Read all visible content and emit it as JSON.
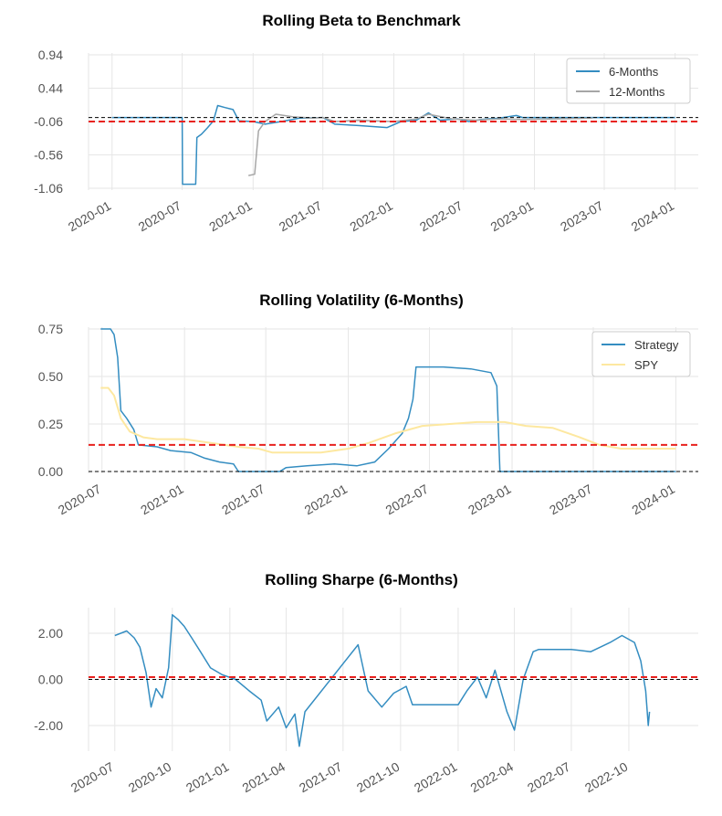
{
  "chart_data": [
    {
      "type": "line",
      "title": "Rolling Beta to Benchmark",
      "xlabel": "",
      "ylabel": "",
      "xlim": [
        "2019-11-01",
        "2024-03-01"
      ],
      "ylim": [
        -1.06,
        0.94
      ],
      "yticks": [
        "0.94",
        "0.44",
        "-0.06",
        "-0.56",
        "-1.06"
      ],
      "xticks": [
        "2020-01",
        "2020-07",
        "2021-01",
        "2021-07",
        "2022-01",
        "2022-07",
        "2023-01",
        "2023-07",
        "2024-01"
      ],
      "grid": true,
      "legend": "top-right",
      "reference_lines": [
        {
          "y": 0.0,
          "style": "dashed",
          "color": "#000000"
        },
        {
          "y": -0.06,
          "style": "dashed",
          "color": "#e8221f"
        }
      ],
      "series": [
        {
          "name": "6-Months",
          "color": "#348dc1",
          "points": [
            [
              "2020-01-01",
              0.0
            ],
            [
              "2020-04-01",
              0.0
            ],
            [
              "2020-07-01",
              0.0
            ],
            [
              "2020-07-02",
              -1.0
            ],
            [
              "2020-08-05",
              -1.0
            ],
            [
              "2020-08-08",
              -0.3
            ],
            [
              "2020-08-20",
              -0.25
            ],
            [
              "2020-09-05",
              -0.15
            ],
            [
              "2020-09-20",
              -0.05
            ],
            [
              "2020-10-01",
              0.18
            ],
            [
              "2020-10-20",
              0.15
            ],
            [
              "2020-11-10",
              0.12
            ],
            [
              "2020-11-25",
              -0.05
            ],
            [
              "2021-01-01",
              -0.06
            ],
            [
              "2021-02-01",
              -0.1
            ],
            [
              "2021-03-15",
              -0.06
            ],
            [
              "2021-05-01",
              -0.01
            ],
            [
              "2021-07-01",
              0.0
            ],
            [
              "2021-08-01",
              -0.1
            ],
            [
              "2021-10-01",
              -0.12
            ],
            [
              "2021-12-15",
              -0.15
            ],
            [
              "2022-01-20",
              -0.06
            ],
            [
              "2022-03-01",
              -0.04
            ],
            [
              "2022-04-01",
              0.07
            ],
            [
              "2022-05-01",
              -0.04
            ],
            [
              "2022-06-15",
              -0.02
            ],
            [
              "2022-07-15",
              -0.06
            ],
            [
              "2022-08-15",
              -0.03
            ],
            [
              "2022-10-01",
              -0.01
            ],
            [
              "2022-11-15",
              0.03
            ],
            [
              "2022-12-01",
              0.0
            ],
            [
              "2023-05-01",
              0.0
            ],
            [
              "2024-01-01",
              0.0
            ]
          ]
        },
        {
          "name": "12-Months",
          "color": "#a6a6a6",
          "points": [
            [
              "2020-12-20",
              -0.87
            ],
            [
              "2021-01-05",
              -0.85
            ],
            [
              "2021-01-15",
              -0.2
            ],
            [
              "2021-02-01",
              -0.06
            ],
            [
              "2021-03-01",
              0.05
            ],
            [
              "2021-04-15",
              0.01
            ],
            [
              "2021-05-15",
              0.0
            ],
            [
              "2021-06-01",
              -0.01
            ],
            [
              "2021-07-01",
              0.0
            ],
            [
              "2021-08-01",
              -0.06
            ],
            [
              "2021-10-01",
              -0.04
            ],
            [
              "2022-01-01",
              -0.06
            ],
            [
              "2022-03-01",
              -0.02
            ],
            [
              "2022-04-01",
              0.05
            ],
            [
              "2022-06-01",
              -0.02
            ],
            [
              "2022-08-01",
              -0.04
            ],
            [
              "2022-10-01",
              -0.02
            ],
            [
              "2022-12-01",
              -0.03
            ],
            [
              "2023-03-01",
              -0.02
            ],
            [
              "2023-06-01",
              -0.01
            ]
          ]
        }
      ]
    },
    {
      "type": "line",
      "title": "Rolling Volatility (6-Months)",
      "xlabel": "",
      "ylabel": "",
      "xlim": [
        "2020-06-01",
        "2024-02-20"
      ],
      "ylim": [
        0.0,
        0.75
      ],
      "yticks": [
        "0.75",
        "0.50",
        "0.25",
        "0.00"
      ],
      "xticks": [
        "2020-07",
        "2021-01",
        "2021-07",
        "2022-01",
        "2022-07",
        "2023-01",
        "2023-07",
        "2024-01"
      ],
      "grid": true,
      "legend": "top-right",
      "reference_lines": [
        {
          "y": 0.0,
          "style": "dashed",
          "color": "#000000"
        },
        {
          "y": 0.14,
          "style": "dashed",
          "color": "#e8221f"
        }
      ],
      "series": [
        {
          "name": "Strategy",
          "color": "#348dc1",
          "points": [
            [
              "2020-06-28",
              0.75
            ],
            [
              "2020-07-20",
              0.75
            ],
            [
              "2020-07-28",
              0.72
            ],
            [
              "2020-08-05",
              0.6
            ],
            [
              "2020-08-12",
              0.32
            ],
            [
              "2020-08-25",
              0.28
            ],
            [
              "2020-09-10",
              0.22
            ],
            [
              "2020-09-20",
              0.14
            ],
            [
              "2020-11-01",
              0.13
            ],
            [
              "2020-12-01",
              0.11
            ],
            [
              "2021-01-15",
              0.1
            ],
            [
              "2021-02-15",
              0.07
            ],
            [
              "2021-03-20",
              0.05
            ],
            [
              "2021-04-20",
              0.04
            ],
            [
              "2021-05-01",
              0.0
            ],
            [
              "2021-08-01",
              0.0
            ],
            [
              "2021-08-15",
              0.02
            ],
            [
              "2021-10-01",
              0.03
            ],
            [
              "2021-12-01",
              0.04
            ],
            [
              "2022-01-20",
              0.03
            ],
            [
              "2022-03-01",
              0.05
            ],
            [
              "2022-04-01",
              0.12
            ],
            [
              "2022-05-01",
              0.2
            ],
            [
              "2022-05-15",
              0.28
            ],
            [
              "2022-05-25",
              0.38
            ],
            [
              "2022-06-01",
              0.55
            ],
            [
              "2022-08-01",
              0.55
            ],
            [
              "2022-10-01",
              0.54
            ],
            [
              "2022-11-15",
              0.52
            ],
            [
              "2022-11-28",
              0.45
            ],
            [
              "2022-12-05",
              0.0
            ],
            [
              "2024-01-01",
              0.0
            ]
          ]
        },
        {
          "name": "SPY",
          "color": "#fde8a0",
          "points": [
            [
              "2020-06-28",
              0.44
            ],
            [
              "2020-07-15",
              0.44
            ],
            [
              "2020-07-28",
              0.4
            ],
            [
              "2020-08-12",
              0.28
            ],
            [
              "2020-09-01",
              0.21
            ],
            [
              "2020-10-01",
              0.18
            ],
            [
              "2020-11-01",
              0.17
            ],
            [
              "2021-01-01",
              0.17
            ],
            [
              "2021-03-01",
              0.15
            ],
            [
              "2021-05-01",
              0.13
            ],
            [
              "2021-06-15",
              0.12
            ],
            [
              "2021-07-15",
              0.1
            ],
            [
              "2021-09-01",
              0.1
            ],
            [
              "2021-11-01",
              0.1
            ],
            [
              "2022-01-01",
              0.12
            ],
            [
              "2022-02-15",
              0.15
            ],
            [
              "2022-04-15",
              0.2
            ],
            [
              "2022-06-15",
              0.24
            ],
            [
              "2022-08-15",
              0.25
            ],
            [
              "2022-10-15",
              0.26
            ],
            [
              "2022-12-15",
              0.26
            ],
            [
              "2023-02-01",
              0.24
            ],
            [
              "2023-04-01",
              0.23
            ],
            [
              "2023-06-01",
              0.18
            ],
            [
              "2023-07-15",
              0.14
            ],
            [
              "2023-09-01",
              0.12
            ],
            [
              "2023-11-01",
              0.12
            ],
            [
              "2024-01-01",
              0.12
            ]
          ]
        }
      ]
    },
    {
      "type": "line",
      "title": "Rolling Sharpe (6-Months)",
      "xlabel": "",
      "ylabel": "",
      "xlim": [
        "2020-05-20",
        "2023-01-20"
      ],
      "ylim": [
        -2.0,
        2.0
      ],
      "yticks": [
        "2.00",
        "0.00",
        "-2.00"
      ],
      "xticks": [
        "2020-07",
        "2020-10",
        "2021-01",
        "2021-04",
        "2021-07",
        "2021-10",
        "2022-01",
        "2022-04",
        "2022-07",
        "2022-10"
      ],
      "grid": true,
      "legend": "none",
      "reference_lines": [
        {
          "y": 0.0,
          "style": "dashed",
          "color": "#000000"
        },
        {
          "y": 0.1,
          "style": "dashed",
          "color": "#e8221f"
        }
      ],
      "series": [
        {
          "name": "",
          "color": "#348dc1",
          "points": [
            [
              "2020-07-01",
              1.9
            ],
            [
              "2020-07-20",
              2.1
            ],
            [
              "2020-08-01",
              1.8
            ],
            [
              "2020-08-10",
              1.4
            ],
            [
              "2020-08-20",
              0.3
            ],
            [
              "2020-08-28",
              -1.2
            ],
            [
              "2020-09-05",
              -0.4
            ],
            [
              "2020-09-15",
              -0.8
            ],
            [
              "2020-09-25",
              0.5
            ],
            [
              "2020-10-01",
              2.8
            ],
            [
              "2020-10-10",
              2.6
            ],
            [
              "2020-10-20",
              2.3
            ],
            [
              "2020-11-01",
              1.8
            ],
            [
              "2020-11-15",
              1.2
            ],
            [
              "2020-12-01",
              0.5
            ],
            [
              "2020-12-20",
              0.2
            ],
            [
              "2021-01-10",
              0.0
            ],
            [
              "2021-02-01",
              -0.5
            ],
            [
              "2021-02-20",
              -0.9
            ],
            [
              "2021-03-01",
              -1.8
            ],
            [
              "2021-03-20",
              -1.2
            ],
            [
              "2021-04-01",
              -2.1
            ],
            [
              "2021-04-15",
              -1.5
            ],
            [
              "2021-04-22",
              -2.9
            ],
            [
              "2021-05-01",
              -1.4
            ],
            [
              "2021-07-25",
              1.5
            ],
            [
              "2021-08-10",
              -0.5
            ],
            [
              "2021-09-01",
              -1.2
            ],
            [
              "2021-09-20",
              -0.6
            ],
            [
              "2021-10-10",
              -0.3
            ],
            [
              "2021-10-20",
              -1.1
            ],
            [
              "2022-01-01",
              -1.1
            ],
            [
              "2022-01-15",
              -0.5
            ],
            [
              "2022-02-01",
              0.1
            ],
            [
              "2022-02-15",
              -0.8
            ],
            [
              "2022-03-01",
              0.4
            ],
            [
              "2022-03-20",
              -1.4
            ],
            [
              "2022-04-01",
              -2.2
            ],
            [
              "2022-04-15",
              0.0
            ],
            [
              "2022-05-01",
              1.2
            ],
            [
              "2022-05-10",
              1.3
            ],
            [
              "2022-07-01",
              1.3
            ],
            [
              "2022-08-01",
              1.2
            ],
            [
              "2022-09-01",
              1.6
            ],
            [
              "2022-09-20",
              1.9
            ],
            [
              "2022-10-10",
              1.6
            ],
            [
              "2022-10-20",
              0.8
            ],
            [
              "2022-10-28",
              -0.5
            ],
            [
              "2022-11-01",
              -2.0
            ],
            [
              "2022-11-03",
              -1.4
            ]
          ]
        }
      ]
    }
  ]
}
